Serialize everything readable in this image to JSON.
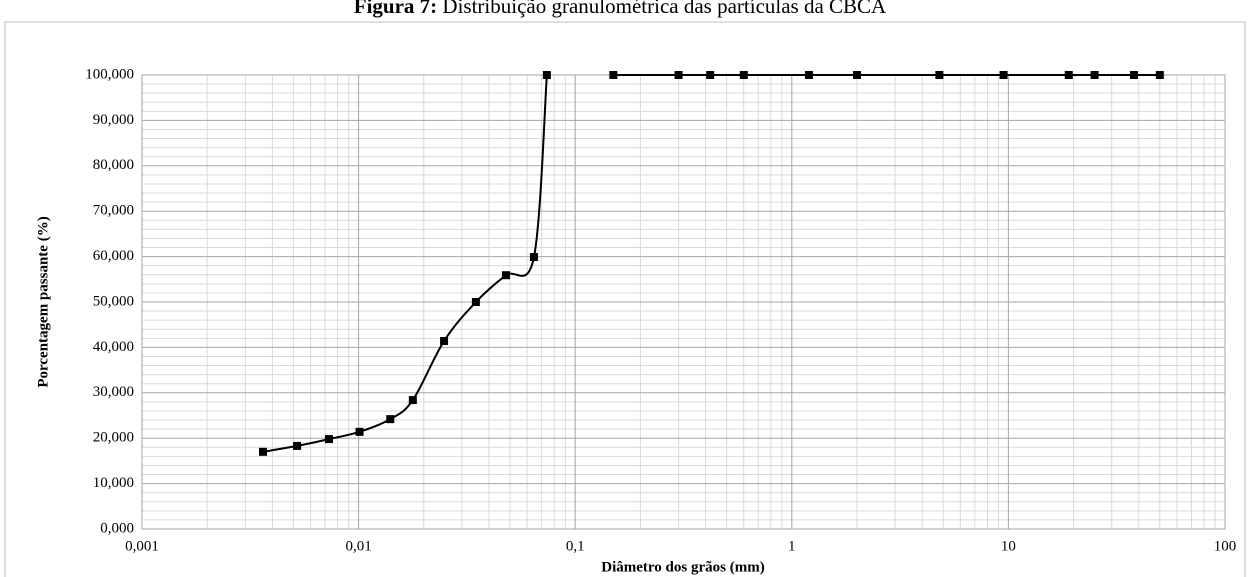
{
  "chart_data": {
    "type": "line",
    "title_prefix": "Figura 7:",
    "title": "Distribuição granulométrica das partículas da CBCA",
    "xlabel": "Diâmetro dos grãos (mm)",
    "ylabel": "Porcentagem passante (%)",
    "xscale": "log",
    "xlim": [
      0.001,
      100
    ],
    "xticks": [
      {
        "value": 0.001,
        "label": "0,001"
      },
      {
        "value": 0.01,
        "label": "0,01"
      },
      {
        "value": 0.1,
        "label": "0,1"
      },
      1,
      10,
      100
    ],
    "ylim": [
      0,
      100
    ],
    "yticks": [
      {
        "value": 0,
        "label": "0,000"
      },
      {
        "value": 10,
        "label": "10,000"
      },
      {
        "value": 20,
        "label": "20,000"
      },
      {
        "value": 30,
        "label": "30,000"
      },
      {
        "value": 40,
        "label": "40,000"
      },
      {
        "value": 50,
        "label": "50,000"
      },
      {
        "value": 60,
        "label": "60,000"
      },
      {
        "value": 70,
        "label": "70,000"
      },
      {
        "value": 80,
        "label": "80,000"
      },
      {
        "value": 90,
        "label": "90,000"
      },
      {
        "value": 100,
        "label": "100,000"
      }
    ],
    "grid": true,
    "minor_grid": true,
    "smooth": true,
    "marker": "square",
    "series": [
      {
        "color": "#000000",
        "x": [
          0.00362,
          0.0052,
          0.0073,
          0.0101,
          0.014,
          0.0178,
          0.0248,
          0.0348,
          0.0479,
          0.0645,
          0.074
        ],
        "values": [
          17.0,
          18.3,
          19.8,
          21.4,
          24.2,
          28.4,
          41.4,
          50.0,
          55.9,
          59.9,
          100
        ]
      },
      {
        "color": "#000000",
        "x": [
          0.15,
          0.3,
          0.42,
          0.6,
          1.2,
          2.0,
          4.8,
          9.5,
          19,
          25,
          38,
          50
        ],
        "values": [
          100,
          100,
          100,
          100,
          100,
          100,
          100,
          100,
          100,
          100,
          100,
          100
        ]
      }
    ]
  }
}
